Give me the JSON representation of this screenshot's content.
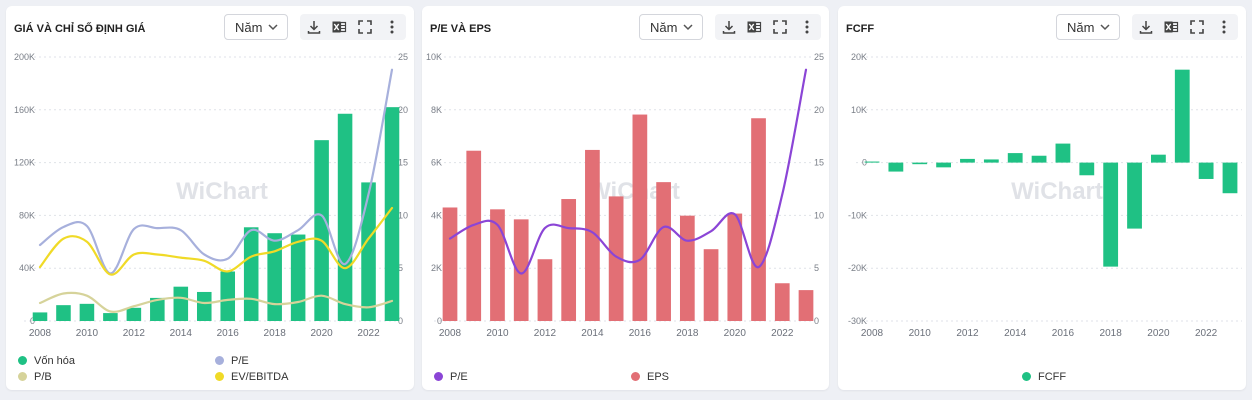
{
  "icons": [
    "download-icon",
    "excel-icon",
    "fullscreen-icon",
    "more-vertical-icon",
    "chevron-down-icon"
  ],
  "watermark": "WiChart",
  "panels": [
    {
      "title": "GIÁ VÀ CHỈ SỐ ĐỊNH GIÁ",
      "period": "Năm"
    },
    {
      "title": "P/E VÀ EPS",
      "period": "Năm"
    },
    {
      "title": "FCFF",
      "period": "Năm"
    }
  ],
  "chart_data": [
    {
      "type": "bar",
      "title": "GIÁ VÀ CHỈ SỐ ĐỊNH GIÁ",
      "x": [
        2008,
        2009,
        2010,
        2011,
        2012,
        2013,
        2014,
        2015,
        2016,
        2017,
        2018,
        2019,
        2020,
        2021,
        2022,
        2023
      ],
      "x_ticks": [
        "2008",
        "2010",
        "2012",
        "2014",
        "2016",
        "2018",
        "2020",
        "2022"
      ],
      "y_left": {
        "ticks": [
          "0",
          "40K",
          "80K",
          "120K",
          "160K",
          "200K"
        ],
        "range": [
          0,
          200000
        ]
      },
      "y_right": {
        "ticks": [
          "0",
          "5",
          "10",
          "15",
          "20",
          "25"
        ],
        "range": [
          0,
          25
        ]
      },
      "series": [
        {
          "name": "Vốn hóa",
          "kind": "bar",
          "axis": "left",
          "color": "#1fc184",
          "values": [
            6500,
            12000,
            13000,
            6000,
            10000,
            17500,
            26000,
            22000,
            37500,
            71000,
            66500,
            65500,
            137000,
            157000,
            105000,
            162000
          ]
        },
        {
          "name": "P/E",
          "kind": "line",
          "axis": "right",
          "color": "#a7b0dc",
          "values": [
            7.2,
            8.9,
            9.0,
            4.5,
            8.7,
            8.8,
            8.6,
            6.3,
            5.9,
            8.6,
            7.6,
            8.6,
            10.0,
            5.4,
            12.0,
            23.8
          ]
        },
        {
          "name": "P/B",
          "kind": "line",
          "axis": "right",
          "color": "#d6d39a",
          "values": [
            1.7,
            2.6,
            2.4,
            0.9,
            1.4,
            2.0,
            2.2,
            1.7,
            2.0,
            2.1,
            1.6,
            1.8,
            2.4,
            1.6,
            1.3,
            1.9
          ]
        },
        {
          "name": "EV/EBITDA",
          "kind": "line",
          "axis": "right",
          "color": "#f0da27",
          "values": [
            5.1,
            7.8,
            7.5,
            4.4,
            6.3,
            6.3,
            6.0,
            5.7,
            4.7,
            6.1,
            6.6,
            7.5,
            7.6,
            5.0,
            7.8,
            10.7
          ]
        }
      ],
      "legend": [
        "Vốn hóa",
        "P/E",
        "P/B",
        "EV/EBITDA"
      ],
      "grid": true,
      "legend_position": "bottom"
    },
    {
      "type": "bar",
      "title": "P/E VÀ EPS",
      "x": [
        2008,
        2009,
        2010,
        2011,
        2012,
        2013,
        2014,
        2015,
        2016,
        2017,
        2018,
        2019,
        2020,
        2021,
        2022,
        2023
      ],
      "x_ticks": [
        "2008",
        "2010",
        "2012",
        "2014",
        "2016",
        "2018",
        "2020",
        "2022"
      ],
      "y_left": {
        "ticks": [
          "0",
          "2K",
          "4K",
          "6K",
          "8K",
          "10K"
        ],
        "range": [
          0,
          10000
        ]
      },
      "y_right": {
        "ticks": [
          "0",
          "5",
          "10",
          "15",
          "20",
          "25"
        ],
        "range": [
          0,
          25
        ]
      },
      "series": [
        {
          "name": "EPS",
          "kind": "bar",
          "axis": "left",
          "color": "#e26f75",
          "values": [
            4300,
            6450,
            4230,
            3850,
            2340,
            4620,
            6480,
            4720,
            7820,
            5260,
            3990,
            2720,
            4070,
            7680,
            1430,
            1170
          ]
        },
        {
          "name": "P/E",
          "kind": "line",
          "axis": "right",
          "color": "#8b45d6",
          "values": [
            7.8,
            9.1,
            9.1,
            4.5,
            8.8,
            8.8,
            8.4,
            6.1,
            5.8,
            8.9,
            7.6,
            8.5,
            10.1,
            5.1,
            12.0,
            23.8
          ]
        }
      ],
      "legend": [
        "P/E",
        "EPS"
      ],
      "grid": true,
      "legend_position": "bottom"
    },
    {
      "type": "bar",
      "title": "FCFF",
      "x": [
        2008,
        2009,
        2010,
        2011,
        2012,
        2013,
        2014,
        2015,
        2016,
        2017,
        2018,
        2019,
        2020,
        2021,
        2022,
        2023
      ],
      "x_ticks": [
        "2008",
        "2010",
        "2012",
        "2014",
        "2016",
        "2018",
        "2020",
        "2022"
      ],
      "y_left": {
        "ticks": [
          "-30K",
          "-20K",
          "-10K",
          "0",
          "10K",
          "20K"
        ],
        "range": [
          -30000,
          20000
        ]
      },
      "series": [
        {
          "name": "FCFF",
          "kind": "bar",
          "axis": "left",
          "color": "#1fc184",
          "values": [
            200,
            -1700,
            -300,
            -900,
            700,
            600,
            1800,
            1300,
            3600,
            -2400,
            -19700,
            -12500,
            1500,
            17600,
            -3100,
            -5800
          ]
        }
      ],
      "legend": [
        "FCFF"
      ],
      "grid": true,
      "legend_position": "bottom"
    }
  ]
}
